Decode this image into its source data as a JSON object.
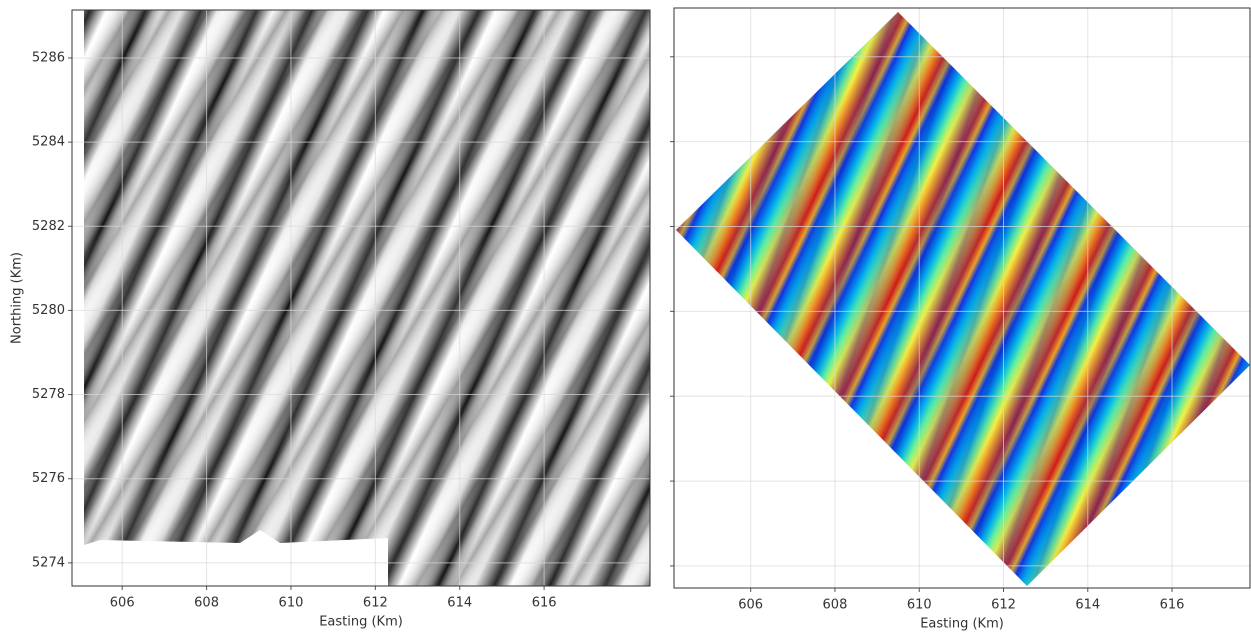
{
  "chart_data": [
    {
      "type": "image",
      "xlabel": "Easting (Km)",
      "ylabel": "Northing (Km)",
      "xlim": [
        604.81,
        618.51
      ],
      "xticks": [
        606,
        608,
        610,
        612,
        614,
        616
      ],
      "ylim": [
        5273.45,
        5287.14
      ],
      "yticks": [
        5274,
        5276,
        5278,
        5280,
        5282,
        5284,
        5286
      ],
      "grid": true,
      "show_ytick_labels": true
    },
    {
      "type": "image",
      "xlabel": "Easting (Km)",
      "xlim": [
        604.18,
        617.85
      ],
      "xticks": [
        606,
        608,
        610,
        612,
        614,
        616
      ],
      "ylim": [
        5273.48,
        5287.15
      ],
      "yticks": [
        5274,
        5276,
        5278,
        5280,
        5282,
        5284,
        5286
      ],
      "grid": true,
      "show_ytick_labels": false
    }
  ]
}
